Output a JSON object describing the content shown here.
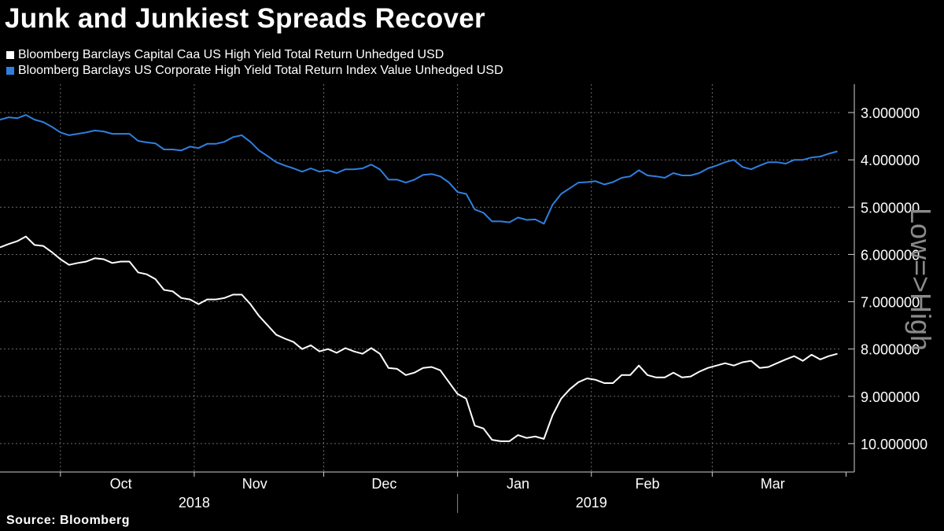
{
  "title": "Junk and Junkiest Spreads Recover",
  "source": "Source: Bloomberg",
  "side_label": "Low=>High",
  "legend": [
    {
      "label": "Bloomberg Barclays Capital Caa US High Yield Total Return Unhedged USD",
      "color": "#ffffff"
    },
    {
      "label": "Bloomberg Barclays US Corporate High Yield Total Return Index Value Unhedged USD",
      "color": "#2f7fe0"
    }
  ],
  "chart_data": {
    "type": "line",
    "title": "Junk and Junkiest Spreads Recover",
    "y_axis_side": "right",
    "y_inverted": true,
    "ylim": [
      10.6,
      2.4
    ],
    "yticks": [
      3,
      4,
      5,
      6,
      7,
      8,
      9,
      10
    ],
    "ytick_labels": [
      "3.000000",
      "4.000000",
      "5.000000",
      "6.000000",
      "7.000000",
      "8.000000",
      "9.000000",
      "10.000000"
    ],
    "grid": true,
    "legend_position": "top-left",
    "xlim": [
      "2018-09-17",
      "2019-03-31"
    ],
    "x_month_labels": [
      {
        "label": "Oct",
        "date": "2018-10-15"
      },
      {
        "label": "Nov",
        "date": "2018-11-15"
      },
      {
        "label": "Dec",
        "date": "2018-12-15"
      },
      {
        "label": "Jan",
        "date": "2019-01-15"
      },
      {
        "label": "Feb",
        "date": "2019-02-14"
      },
      {
        "label": "Mar",
        "date": "2019-03-15"
      }
    ],
    "x_month_boundaries": [
      "2018-10-01",
      "2018-11-01",
      "2018-12-01",
      "2019-01-01",
      "2019-02-01",
      "2019-03-01",
      "2019-04-01"
    ],
    "x_year_labels": [
      {
        "label": "2018",
        "date": "2018-11-01"
      },
      {
        "label": "2019",
        "date": "2019-02-01"
      }
    ],
    "series": [
      {
        "name": "Bloomberg Barclays Capital Caa US High Yield Total Return Unhedged USD",
        "color": "#ffffff",
        "points": [
          [
            "2018-09-17",
            5.85
          ],
          [
            "2018-09-19",
            5.78
          ],
          [
            "2018-09-21",
            5.72
          ],
          [
            "2018-09-23",
            5.62
          ],
          [
            "2018-09-25",
            5.8
          ],
          [
            "2018-09-27",
            5.82
          ],
          [
            "2018-09-29",
            5.95
          ],
          [
            "2018-10-01",
            6.1
          ],
          [
            "2018-10-03",
            6.22
          ],
          [
            "2018-10-05",
            6.18
          ],
          [
            "2018-10-07",
            6.15
          ],
          [
            "2018-10-09",
            6.08
          ],
          [
            "2018-10-11",
            6.1
          ],
          [
            "2018-10-13",
            6.18
          ],
          [
            "2018-10-15",
            6.15
          ],
          [
            "2018-10-17",
            6.15
          ],
          [
            "2018-10-19",
            6.38
          ],
          [
            "2018-10-21",
            6.42
          ],
          [
            "2018-10-23",
            6.52
          ],
          [
            "2018-10-25",
            6.75
          ],
          [
            "2018-10-27",
            6.78
          ],
          [
            "2018-10-29",
            6.92
          ],
          [
            "2018-10-31",
            6.95
          ],
          [
            "2018-11-02",
            7.05
          ],
          [
            "2018-11-04",
            6.95
          ],
          [
            "2018-11-06",
            6.95
          ],
          [
            "2018-11-08",
            6.92
          ],
          [
            "2018-11-10",
            6.85
          ],
          [
            "2018-11-12",
            6.85
          ],
          [
            "2018-11-14",
            7.05
          ],
          [
            "2018-11-16",
            7.3
          ],
          [
            "2018-11-18",
            7.5
          ],
          [
            "2018-11-20",
            7.7
          ],
          [
            "2018-11-22",
            7.78
          ],
          [
            "2018-11-24",
            7.85
          ],
          [
            "2018-11-26",
            8.0
          ],
          [
            "2018-11-28",
            7.92
          ],
          [
            "2018-11-30",
            8.05
          ],
          [
            "2018-12-02",
            8.0
          ],
          [
            "2018-12-04",
            8.08
          ],
          [
            "2018-12-06",
            7.98
          ],
          [
            "2018-12-08",
            8.05
          ],
          [
            "2018-12-10",
            8.1
          ],
          [
            "2018-12-12",
            7.98
          ],
          [
            "2018-12-14",
            8.1
          ],
          [
            "2018-12-16",
            8.4
          ],
          [
            "2018-12-18",
            8.42
          ],
          [
            "2018-12-20",
            8.55
          ],
          [
            "2018-12-22",
            8.5
          ],
          [
            "2018-12-24",
            8.4
          ],
          [
            "2018-12-26",
            8.38
          ],
          [
            "2018-12-28",
            8.45
          ],
          [
            "2018-12-30",
            8.7
          ],
          [
            "2019-01-01",
            8.95
          ],
          [
            "2019-01-03",
            9.05
          ],
          [
            "2019-01-05",
            9.62
          ],
          [
            "2019-01-07",
            9.68
          ],
          [
            "2019-01-09",
            9.92
          ],
          [
            "2019-01-11",
            9.95
          ],
          [
            "2019-01-13",
            9.95
          ],
          [
            "2019-01-15",
            9.82
          ],
          [
            "2019-01-17",
            9.88
          ],
          [
            "2019-01-19",
            9.85
          ],
          [
            "2019-01-21",
            9.9
          ],
          [
            "2019-01-23",
            9.4
          ],
          [
            "2019-01-25",
            9.05
          ],
          [
            "2019-01-27",
            8.85
          ],
          [
            "2019-01-29",
            8.7
          ],
          [
            "2019-01-31",
            8.62
          ],
          [
            "2019-02-02",
            8.65
          ],
          [
            "2019-02-04",
            8.72
          ],
          [
            "2019-02-06",
            8.72
          ],
          [
            "2019-02-08",
            8.55
          ],
          [
            "2019-02-10",
            8.55
          ],
          [
            "2019-02-12",
            8.35
          ],
          [
            "2019-02-14",
            8.55
          ],
          [
            "2019-02-16",
            8.6
          ],
          [
            "2019-02-18",
            8.6
          ],
          [
            "2019-02-20",
            8.5
          ],
          [
            "2019-02-22",
            8.6
          ],
          [
            "2019-02-24",
            8.58
          ],
          [
            "2019-02-26",
            8.48
          ],
          [
            "2019-02-28",
            8.4
          ],
          [
            "2019-03-02",
            8.35
          ],
          [
            "2019-03-04",
            8.3
          ],
          [
            "2019-03-06",
            8.35
          ],
          [
            "2019-03-08",
            8.28
          ],
          [
            "2019-03-10",
            8.25
          ],
          [
            "2019-03-12",
            8.4
          ],
          [
            "2019-03-14",
            8.38
          ],
          [
            "2019-03-16",
            8.3
          ],
          [
            "2019-03-18",
            8.22
          ],
          [
            "2019-03-20",
            8.15
          ],
          [
            "2019-03-22",
            8.25
          ],
          [
            "2019-03-24",
            8.12
          ],
          [
            "2019-03-26",
            8.22
          ],
          [
            "2019-03-28",
            8.15
          ],
          [
            "2019-03-30",
            8.1
          ]
        ]
      },
      {
        "name": "Bloomberg Barclays US Corporate High Yield Total Return Index Value Unhedged USD",
        "color": "#2f7fe0",
        "points": [
          [
            "2018-09-17",
            3.15
          ],
          [
            "2018-09-19",
            3.1
          ],
          [
            "2018-09-21",
            3.12
          ],
          [
            "2018-09-23",
            3.05
          ],
          [
            "2018-09-25",
            3.15
          ],
          [
            "2018-09-27",
            3.2
          ],
          [
            "2018-09-29",
            3.3
          ],
          [
            "2018-10-01",
            3.42
          ],
          [
            "2018-10-03",
            3.48
          ],
          [
            "2018-10-05",
            3.45
          ],
          [
            "2018-10-07",
            3.42
          ],
          [
            "2018-10-09",
            3.38
          ],
          [
            "2018-10-11",
            3.4
          ],
          [
            "2018-10-13",
            3.45
          ],
          [
            "2018-10-15",
            3.45
          ],
          [
            "2018-10-17",
            3.45
          ],
          [
            "2018-10-19",
            3.6
          ],
          [
            "2018-10-21",
            3.63
          ],
          [
            "2018-10-23",
            3.65
          ],
          [
            "2018-10-25",
            3.78
          ],
          [
            "2018-10-27",
            3.78
          ],
          [
            "2018-10-29",
            3.8
          ],
          [
            "2018-10-31",
            3.72
          ],
          [
            "2018-11-02",
            3.75
          ],
          [
            "2018-11-04",
            3.66
          ],
          [
            "2018-11-06",
            3.66
          ],
          [
            "2018-11-08",
            3.62
          ],
          [
            "2018-11-10",
            3.52
          ],
          [
            "2018-11-12",
            3.48
          ],
          [
            "2018-11-14",
            3.62
          ],
          [
            "2018-11-16",
            3.8
          ],
          [
            "2018-11-18",
            3.92
          ],
          [
            "2018-11-20",
            4.05
          ],
          [
            "2018-11-22",
            4.12
          ],
          [
            "2018-11-24",
            4.18
          ],
          [
            "2018-11-26",
            4.25
          ],
          [
            "2018-11-28",
            4.18
          ],
          [
            "2018-11-30",
            4.25
          ],
          [
            "2018-12-02",
            4.22
          ],
          [
            "2018-12-04",
            4.28
          ],
          [
            "2018-12-06",
            4.2
          ],
          [
            "2018-12-08",
            4.2
          ],
          [
            "2018-12-10",
            4.18
          ],
          [
            "2018-12-12",
            4.1
          ],
          [
            "2018-12-14",
            4.2
          ],
          [
            "2018-12-16",
            4.42
          ],
          [
            "2018-12-18",
            4.42
          ],
          [
            "2018-12-20",
            4.48
          ],
          [
            "2018-12-22",
            4.42
          ],
          [
            "2018-12-24",
            4.32
          ],
          [
            "2018-12-26",
            4.3
          ],
          [
            "2018-12-28",
            4.35
          ],
          [
            "2018-12-30",
            4.48
          ],
          [
            "2019-01-01",
            4.68
          ],
          [
            "2019-01-03",
            4.72
          ],
          [
            "2019-01-05",
            5.05
          ],
          [
            "2019-01-07",
            5.12
          ],
          [
            "2019-01-09",
            5.3
          ],
          [
            "2019-01-11",
            5.3
          ],
          [
            "2019-01-13",
            5.32
          ],
          [
            "2019-01-15",
            5.22
          ],
          [
            "2019-01-17",
            5.27
          ],
          [
            "2019-01-19",
            5.26
          ],
          [
            "2019-01-21",
            5.35
          ],
          [
            "2019-01-23",
            4.95
          ],
          [
            "2019-01-25",
            4.72
          ],
          [
            "2019-01-27",
            4.6
          ],
          [
            "2019-01-29",
            4.48
          ],
          [
            "2019-01-31",
            4.47
          ],
          [
            "2019-02-02",
            4.45
          ],
          [
            "2019-02-04",
            4.52
          ],
          [
            "2019-02-06",
            4.47
          ],
          [
            "2019-02-08",
            4.38
          ],
          [
            "2019-02-10",
            4.35
          ],
          [
            "2019-02-12",
            4.22
          ],
          [
            "2019-02-14",
            4.33
          ],
          [
            "2019-02-16",
            4.35
          ],
          [
            "2019-02-18",
            4.38
          ],
          [
            "2019-02-20",
            4.28
          ],
          [
            "2019-02-22",
            4.33
          ],
          [
            "2019-02-24",
            4.33
          ],
          [
            "2019-02-26",
            4.28
          ],
          [
            "2019-02-28",
            4.18
          ],
          [
            "2019-03-02",
            4.12
          ],
          [
            "2019-03-04",
            4.05
          ],
          [
            "2019-03-06",
            4.0
          ],
          [
            "2019-03-08",
            4.15
          ],
          [
            "2019-03-10",
            4.2
          ],
          [
            "2019-03-12",
            4.12
          ],
          [
            "2019-03-14",
            4.05
          ],
          [
            "2019-03-16",
            4.05
          ],
          [
            "2019-03-18",
            4.08
          ],
          [
            "2019-03-20",
            4.0
          ],
          [
            "2019-03-22",
            4.0
          ],
          [
            "2019-03-24",
            3.95
          ],
          [
            "2019-03-26",
            3.93
          ],
          [
            "2019-03-28",
            3.87
          ],
          [
            "2019-03-30",
            3.82
          ]
        ]
      }
    ]
  }
}
